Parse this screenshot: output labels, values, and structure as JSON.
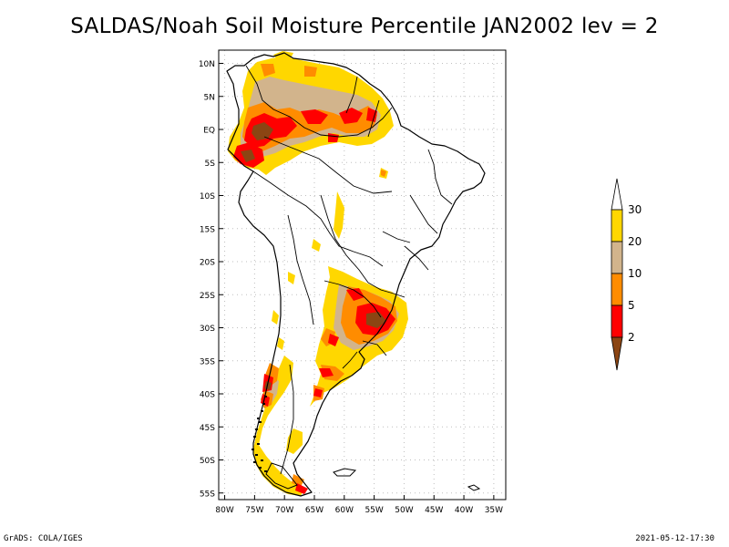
{
  "title": "SALDAS/Noah Soil Moisture Percentile JAN2002 lev = 2",
  "footer": {
    "left": "GrADS: COLA/IGES",
    "right": "2021-05-12-17:30"
  },
  "map": {
    "lon_range": [
      -81,
      -33
    ],
    "lat_range": [
      -56,
      12
    ],
    "grid": true,
    "lon_ticks": [
      {
        "value": -80,
        "label": "80W"
      },
      {
        "value": -75,
        "label": "75W"
      },
      {
        "value": -70,
        "label": "70W"
      },
      {
        "value": -65,
        "label": "65W"
      },
      {
        "value": -60,
        "label": "60W"
      },
      {
        "value": -55,
        "label": "55W"
      },
      {
        "value": -50,
        "label": "50W"
      },
      {
        "value": -45,
        "label": "45W"
      },
      {
        "value": -40,
        "label": "40W"
      },
      {
        "value": -35,
        "label": "35W"
      }
    ],
    "lat_ticks": [
      {
        "value": 10,
        "label": "10N"
      },
      {
        "value": 5,
        "label": "5N"
      },
      {
        "value": 0,
        "label": "EQ"
      },
      {
        "value": -5,
        "label": "5S"
      },
      {
        "value": -10,
        "label": "10S"
      },
      {
        "value": -15,
        "label": "15S"
      },
      {
        "value": -20,
        "label": "20S"
      },
      {
        "value": -25,
        "label": "25S"
      },
      {
        "value": -30,
        "label": "30S"
      },
      {
        "value": -35,
        "label": "35S"
      },
      {
        "value": -40,
        "label": "40S"
      },
      {
        "value": -45,
        "label": "45S"
      },
      {
        "value": -50,
        "label": "50S"
      },
      {
        "value": -55,
        "label": "55S"
      }
    ]
  },
  "colorbar": {
    "labels": [
      "30",
      "20",
      "10",
      "5",
      "2"
    ],
    "colors": {
      "above_30": "#ffffff",
      "20_30": "#ffd700",
      "10_20": "#d2b48c",
      "5_10": "#ff8c00",
      "2_5": "#ff0000",
      "below_2": "#8b4513"
    }
  },
  "colors": {
    "yellow": "#ffd700",
    "tan": "#d2b48c",
    "orange": "#ff8c00",
    "red": "#ff0000",
    "brown": "#8b4513",
    "coastline": "#000000",
    "grid": "#bfbfbf"
  }
}
